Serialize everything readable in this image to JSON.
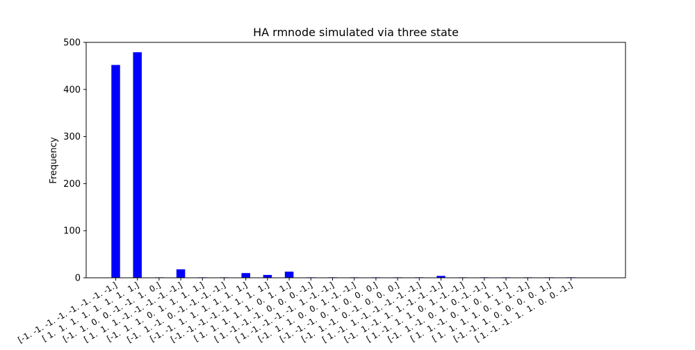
{
  "chart_data": {
    "type": "bar",
    "title": "HA rmnode simulated via three state",
    "xlabel": "",
    "ylabel": "Frequency",
    "ylim": [
      0,
      500
    ],
    "yticks": [
      0,
      100,
      200,
      300,
      400,
      500
    ],
    "grid": false,
    "bar_color": "#0000ff",
    "categories": [
      "[-1. -1. -1. -1. -1. -1. -1. -1.]",
      "[ 1.  1.  1.  1.  1.  1.  1.  1.]",
      "[-1.  1.  0.  0. -1. -1.  1.  0.]",
      "[ 1.  1.  1. -1. -1. -1. -1. -1.]",
      "[-1.  1.  1.  0.  1.  1.  1.  1.]",
      "[-1.  1. -1.  0. -1. -1. -1. -1.]",
      "[-1. -1.  1.  1.  1.  1.  1.  1.]",
      "[-1. -1. -1. -1. -1.  1.  1.  1.]",
      "[ 1.  1.  1.  1.  1.  0.  1.  1.]",
      "[ 1. -1. -1. -1.  0.  0.  0. -1.]",
      "[ 1. -1. -1. -1. -1.  1. -1. -1.]",
      "[-1.  1.  1.  0.  0.  1. -1. -1.]",
      "[-1. -1. -1.  0.  1.  0.  0.  0.]",
      "[-1.  1. -1.  0. -1.  0.  0.  0.]",
      "[ 1. -1.  1. -1. -1. -1. -1. -1.]",
      "[-1.  1. -1.  1.  1. -1. -1. -1.]",
      "[ 1. -1.  1.  1.  0.  1. -1. -1.]",
      "[-1.  1. -1.  0.  1.  0. -1. -1.]",
      "[ 1.  1. -1.  0.  1.  0.  1.  1.]",
      "[ 1.  1.  1.  1.  0.  1.  1. -1.]",
      "[-1. -1.  1.  0.  0.  0.  0.  1.]",
      "[ 1. -1. -1.  1.  1.  0.  0. -1.]"
    ],
    "values": [
      452,
      479,
      1,
      18,
      1,
      1,
      10,
      6,
      13,
      1,
      1,
      1,
      1,
      1,
      1,
      4,
      1,
      1,
      1,
      1,
      1,
      1
    ]
  }
}
